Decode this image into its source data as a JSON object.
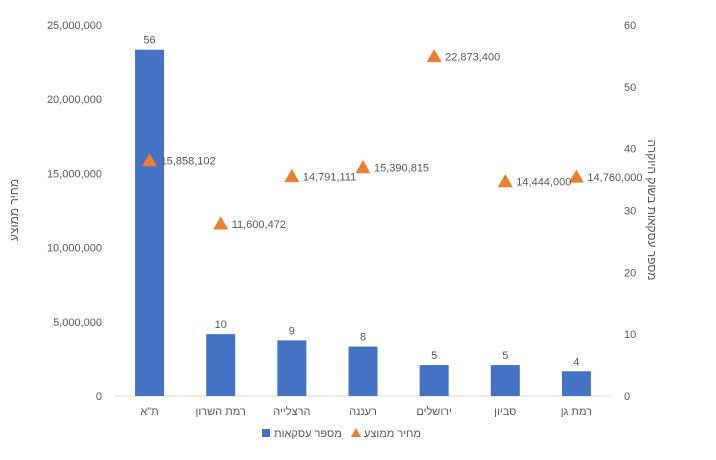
{
  "chart_data": {
    "type": "bar",
    "categories": [
      "ת\"א",
      "רמת השרון",
      "הרצלייה",
      "רעננה",
      "ירושלים",
      "סביון",
      "רמת גן"
    ],
    "series": [
      {
        "name": "מספר עסקאות",
        "type": "bar",
        "axis": "right",
        "values": [
          56,
          10,
          9,
          8,
          5,
          5,
          4
        ],
        "color": "#4472C4",
        "labels": [
          "56",
          "10",
          "9",
          "8",
          "5",
          "5",
          "4"
        ]
      },
      {
        "name": "מחיר ממוצע",
        "type": "scatter",
        "marker": "triangle",
        "axis": "left",
        "values": [
          15858102,
          11600472,
          14791111,
          15390815,
          22873400,
          14444000,
          14760000
        ],
        "color": "#ED7D31",
        "labels": [
          "15,858,102",
          "11,600,472",
          "14,791,111",
          "15,390,815",
          "22,873,400",
          "14,444,000",
          "14,760,000"
        ]
      }
    ],
    "left_axis": {
      "label": "מחיר ממוצע",
      "min": 0,
      "max": 25000000,
      "ticks": [
        0,
        5000000,
        10000000,
        15000000,
        20000000,
        25000000
      ],
      "tick_labels": [
        "0",
        "5,000,000",
        "10,000,000",
        "15,000,000",
        "20,000,000",
        "25,000,000"
      ]
    },
    "right_axis": {
      "label": "מספר עסקאות בשוק היוקרה",
      "min": 0,
      "max": 60,
      "ticks": [
        0,
        10,
        20,
        30,
        40,
        50,
        60
      ],
      "tick_labels": [
        "0",
        "10",
        "20",
        "30",
        "40",
        "50",
        "60"
      ]
    },
    "grid": false,
    "legend_position": "bottom",
    "legend": [
      {
        "name": "מספר עסקאות",
        "marker": "square",
        "color": "#4472C4"
      },
      {
        "name": "מחיר ממוצע",
        "marker": "triangle",
        "color": "#ED7D31"
      }
    ]
  }
}
